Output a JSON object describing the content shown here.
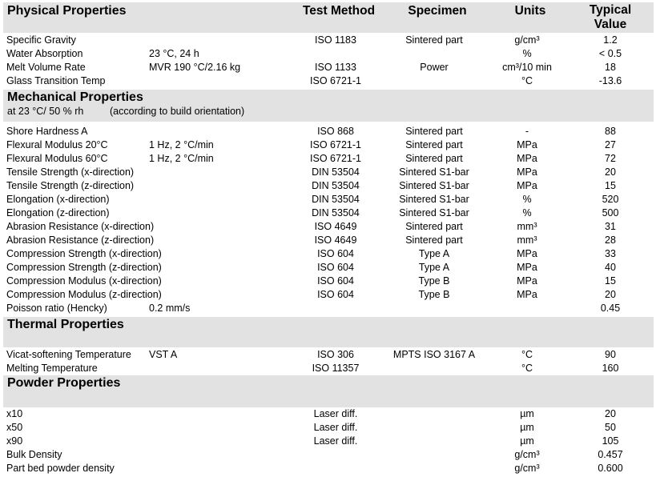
{
  "columns": {
    "test_method": "Test Method",
    "specimen": "Specimen",
    "units": "Units",
    "typical_value_line1": "Typical",
    "typical_value_line2": "Value"
  },
  "sections": [
    {
      "title": "Physical Properties",
      "rows": [
        {
          "name": "Specific Gravity",
          "condition": "",
          "test": "ISO 1183",
          "specimen": "Sintered part",
          "unit": "g/cm³",
          "value": "1.2"
        },
        {
          "name": "Water Absorption",
          "condition": "23 °C, 24 h",
          "test": "",
          "specimen": "",
          "unit": "%",
          "value": "< 0.5"
        },
        {
          "name": "Melt Volume Rate",
          "condition": "MVR 190 °C/2.16 kg",
          "test": "ISO 1133",
          "specimen": "Power",
          "unit": "cm³/10 min",
          "value": "18"
        },
        {
          "name": "Glass Transition Temp",
          "condition": "",
          "test": "ISO 6721-1",
          "specimen": "",
          "unit": "°C",
          "value": "-13.6"
        }
      ]
    },
    {
      "title": "Mechanical Properties",
      "subtitle": "at 23 °C/ 50 % rh",
      "subtitle_note": "(according to build orientation)",
      "rows": [
        {
          "name": "Shore Hardness A",
          "condition": "",
          "test": "ISO 868",
          "specimen": "Sintered part",
          "unit": "-",
          "value": "88"
        },
        {
          "name": "Flexural Modulus 20°C",
          "condition": "1 Hz, 2 °C/min",
          "test": "ISO 6721-1",
          "specimen": "Sintered part",
          "unit": "MPa",
          "value": "27"
        },
        {
          "name": "Flexural Modulus 60°C",
          "condition": "1 Hz, 2 °C/min",
          "test": "ISO 6721-1",
          "specimen": "Sintered part",
          "unit": "MPa",
          "value": "72"
        },
        {
          "name": "Tensile Strength (x-direction)",
          "condition": "",
          "test": "DIN 53504",
          "specimen": "Sintered S1-bar",
          "unit": "MPa",
          "value": "20"
        },
        {
          "name": "Tensile Strength (z-direction)",
          "condition": "",
          "test": "DIN 53504",
          "specimen": "Sintered S1-bar",
          "unit": "MPa",
          "value": "15"
        },
        {
          "name": "Elongation (x-direction)",
          "condition": "",
          "test": "DIN 53504",
          "specimen": "Sintered S1-bar",
          "unit": "%",
          "value": "520"
        },
        {
          "name": "Elongation (z-direction)",
          "condition": "",
          "test": "DIN 53504",
          "specimen": "Sintered S1-bar",
          "unit": "%",
          "value": "500"
        },
        {
          "name": "Abrasion Resistance (x-direction)",
          "condition": "",
          "test": "ISO 4649",
          "specimen": "Sintered part",
          "unit": "mm³",
          "value": "31"
        },
        {
          "name": "Abrasion Resistance (z-direction)",
          "condition": "",
          "test": "ISO 4649",
          "specimen": "Sintered part",
          "unit": "mm³",
          "value": "28"
        },
        {
          "name": "Compression Strength (x-direction)",
          "condition": "",
          "test": "ISO 604",
          "specimen": "Type A",
          "unit": "MPa",
          "value": "33"
        },
        {
          "name": "Compression Strength (z-direction)",
          "condition": "",
          "test": "ISO 604",
          "specimen": "Type A",
          "unit": "MPa",
          "value": "40"
        },
        {
          "name": "Compression Modulus (x-direction)",
          "condition": "",
          "test": "ISO 604",
          "specimen": "Type B",
          "unit": "MPa",
          "value": "15"
        },
        {
          "name": "Compression Modulus (z-direction)",
          "condition": "",
          "test": "ISO 604",
          "specimen": "Type B",
          "unit": "MPa",
          "value": "20"
        },
        {
          "name": "Poisson ratio (Hencky)",
          "condition": "0.2 mm/s",
          "test": "",
          "specimen": "",
          "unit": "",
          "value": "0.45"
        }
      ]
    },
    {
      "title": "Thermal Properties",
      "rows": [
        {
          "name": "Vicat-softening Temperature",
          "condition": "VST A",
          "test": "ISO 306",
          "specimen": "MPTS ISO 3167 A",
          "unit": "°C",
          "value": "90"
        },
        {
          "name": "Melting Temperature",
          "condition": "",
          "test": "ISO 11357",
          "specimen": "",
          "unit": "°C",
          "value": "160"
        }
      ]
    },
    {
      "title": "Powder Properties",
      "rows": [
        {
          "name": "x10",
          "condition": "",
          "test": "Laser diff.",
          "specimen": "",
          "unit": "µm",
          "value": "20"
        },
        {
          "name": "x50",
          "condition": "",
          "test": "Laser diff.",
          "specimen": "",
          "unit": "µm",
          "value": "50"
        },
        {
          "name": "x90",
          "condition": "",
          "test": "Laser diff.",
          "specimen": "",
          "unit": "µm",
          "value": "105"
        },
        {
          "name": "Bulk Density",
          "condition": "",
          "test": "",
          "specimen": "",
          "unit": "g/cm³",
          "value": "0.457"
        },
        {
          "name": "Part bed powder density",
          "condition": "",
          "test": "",
          "specimen": "",
          "unit": "g/cm³",
          "value": "0.600"
        }
      ]
    }
  ]
}
